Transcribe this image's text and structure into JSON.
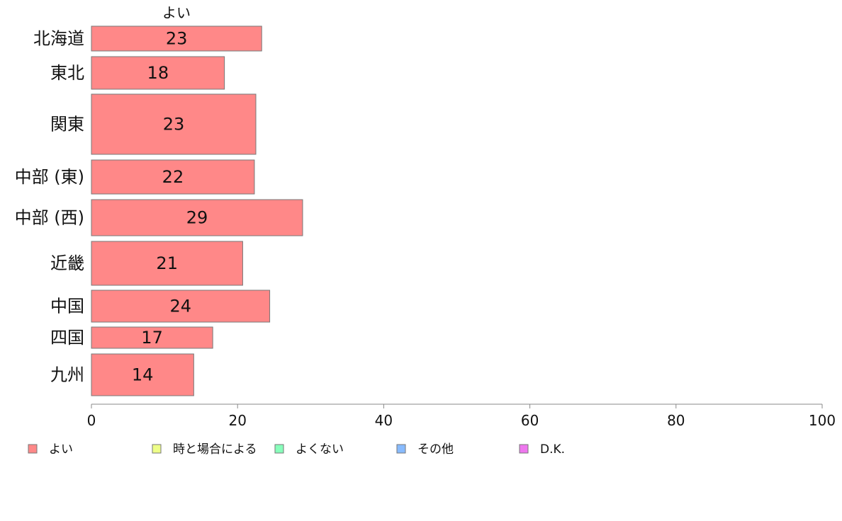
{
  "chart_data": {
    "type": "bar",
    "orientation": "horizontal",
    "stacked": true,
    "categories": [
      "北海道",
      "東北",
      "関東",
      "中部 (東)",
      "中部 (西)",
      "近畿",
      "中国",
      "四国",
      "九州"
    ],
    "series": [
      {
        "name": "よい",
        "color": "#ff8888",
        "values": [
          23.3,
          18.2,
          22.5,
          22.3,
          28.9,
          20.7,
          24.4,
          16.6,
          14.0
        ],
        "value_labels": [
          "23",
          "18",
          "23",
          "22",
          "29",
          "21",
          "24",
          "17",
          "14"
        ]
      }
    ],
    "series_title": "よい",
    "xlim": [
      0,
      100
    ],
    "xticks": [
      "0",
      "20",
      "40",
      "60",
      "80",
      "100"
    ],
    "grid": false,
    "legend_position": "bottom",
    "legend": [
      {
        "label": "よい",
        "color": "#ff8888"
      },
      {
        "label": "時と場合による",
        "color": "#eeff88"
      },
      {
        "label": "よくない",
        "color": "#88ffbb"
      },
      {
        "label": "その他",
        "color": "#88bbff"
      },
      {
        "label": "D.K.",
        "color": "#ee77ee"
      }
    ]
  }
}
